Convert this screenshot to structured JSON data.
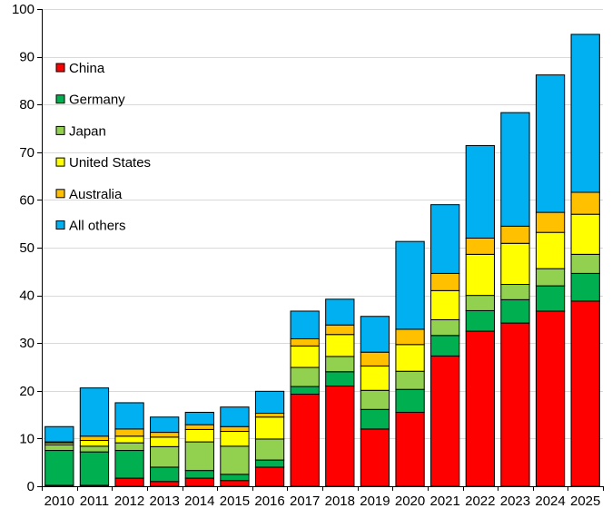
{
  "chart_data": {
    "type": "bar",
    "stacked": true,
    "categories": [
      "2010",
      "2011",
      "2012",
      "2013",
      "2014",
      "2015",
      "2016",
      "2017",
      "2018",
      "2019",
      "2020",
      "2021",
      "2022",
      "2023",
      "2024",
      "2025"
    ],
    "ylim": [
      0,
      100
    ],
    "yticks": [
      0,
      10,
      20,
      30,
      40,
      50,
      60,
      70,
      80,
      90,
      100
    ],
    "grid": true,
    "legend_position": "upper-left",
    "series": [
      {
        "name": "China",
        "color": "#ff0000",
        "values": [
          0.2,
          0.2,
          1.7,
          1.0,
          1.7,
          1.2,
          4.0,
          19.3,
          21.0,
          12.0,
          15.5,
          27.3,
          32.5,
          34.2,
          36.7,
          38.8
        ]
      },
      {
        "name": "Germany",
        "color": "#00b050",
        "values": [
          7.3,
          7.0,
          5.8,
          3.0,
          1.6,
          1.3,
          1.5,
          1.6,
          3.0,
          4.1,
          4.8,
          4.3,
          4.3,
          4.9,
          5.3,
          5.8
        ]
      },
      {
        "name": "Japan",
        "color": "#92d050",
        "values": [
          1.2,
          1.2,
          1.6,
          4.3,
          6.0,
          5.9,
          4.4,
          4.0,
          3.2,
          4.0,
          3.8,
          3.3,
          3.2,
          3.2,
          3.6,
          4.0
        ]
      },
      {
        "name": "United States",
        "color": "#ffff00",
        "values": [
          0.4,
          1.2,
          1.4,
          2.0,
          2.6,
          3.1,
          4.6,
          4.5,
          4.6,
          5.1,
          5.6,
          6.1,
          8.6,
          8.6,
          7.6,
          8.4
        ]
      },
      {
        "name": "Australia",
        "color": "#ffc000",
        "values": [
          0.2,
          0.9,
          1.5,
          1.0,
          1.0,
          1.0,
          0.8,
          1.5,
          2.0,
          2.9,
          3.2,
          3.6,
          3.4,
          3.6,
          4.2,
          4.6
        ]
      },
      {
        "name": "All others",
        "color": "#00b0f0",
        "values": [
          3.2,
          10.1,
          5.5,
          3.2,
          2.6,
          4.1,
          4.6,
          5.8,
          5.4,
          7.5,
          18.4,
          14.4,
          19.4,
          23.8,
          28.8,
          33.1
        ]
      }
    ]
  }
}
